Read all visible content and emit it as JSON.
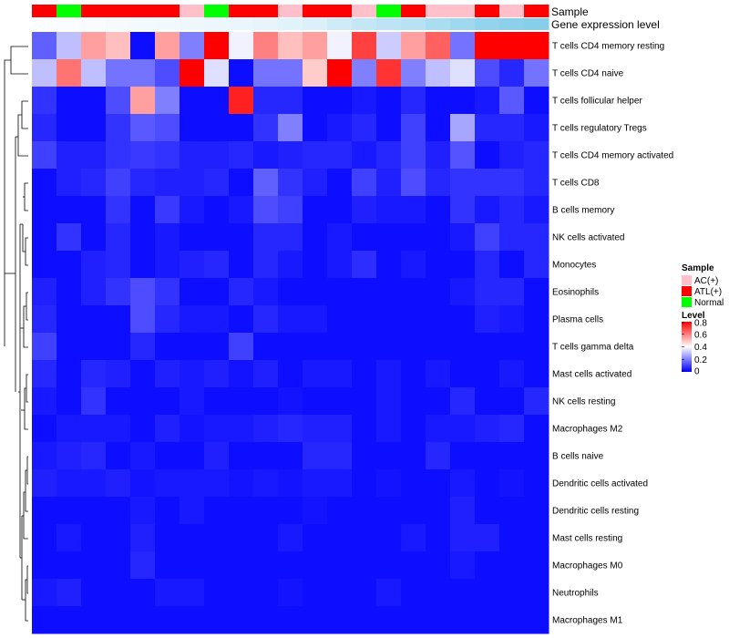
{
  "chart_data": {
    "type": "heatmap",
    "annotation_tracks": {
      "sample_label": "Sample",
      "gene_label": "Gene expression level"
    },
    "sample_groups": [
      "ATL(+)",
      "Normal",
      "ATL(+)",
      "ATL(+)",
      "ATL(+)",
      "ATL(+)",
      "AC(+)",
      "Normal",
      "ATL(+)",
      "ATL(+)",
      "AC(+)",
      "ATL(+)",
      "ATL(+)",
      "AC(+)",
      "Normal",
      "ATL(+)",
      "AC(+)",
      "AC(+)",
      "ATL(+)",
      "AC(+)",
      "ATL(+)"
    ],
    "gene_expression": [
      0.02,
      0.04,
      0.06,
      0.08,
      0.1,
      0.12,
      0.14,
      0.16,
      0.18,
      0.2,
      0.25,
      0.3,
      0.4,
      0.5,
      0.55,
      0.6,
      0.7,
      0.8,
      0.9,
      0.95,
      1.0
    ],
    "rows": [
      {
        "name": "T cells CD4 memory resting",
        "values": [
          0.15,
          0.3,
          0.55,
          0.5,
          0.02,
          0.55,
          0.2,
          0.8,
          0.38,
          0.6,
          0.5,
          0.55,
          0.38,
          0.7,
          0.32,
          0.55,
          0.65,
          0.18,
          0.8,
          0.8,
          0.8
        ]
      },
      {
        "name": "T cells CD4 naive",
        "values": [
          0.3,
          0.62,
          0.3,
          0.18,
          0.18,
          0.12,
          0.8,
          0.35,
          0.02,
          0.18,
          0.18,
          0.48,
          0.8,
          0.2,
          0.72,
          0.2,
          0.3,
          0.35,
          0.12,
          0.06,
          0.18
        ]
      },
      {
        "name": "T cells follicular helper",
        "values": [
          0.08,
          0.02,
          0.02,
          0.12,
          0.55,
          0.2,
          0.02,
          0.02,
          0.75,
          0.06,
          0.06,
          0.02,
          0.02,
          0.04,
          0.02,
          0.06,
          0.02,
          0.02,
          0.04,
          0.14,
          0.02
        ]
      },
      {
        "name": "T cells regulatory  Tregs",
        "values": [
          0.06,
          0.02,
          0.02,
          0.08,
          0.14,
          0.12,
          0.02,
          0.02,
          0.02,
          0.08,
          0.2,
          0.02,
          0.04,
          0.06,
          0.02,
          0.1,
          0.02,
          0.26,
          0.06,
          0.06,
          0.04
        ]
      },
      {
        "name": "T cells CD4 memory activated",
        "values": [
          0.1,
          0.05,
          0.05,
          0.08,
          0.09,
          0.08,
          0.05,
          0.05,
          0.06,
          0.04,
          0.05,
          0.06,
          0.06,
          0.04,
          0.06,
          0.1,
          0.05,
          0.13,
          0.02,
          0.05,
          0.06
        ]
      },
      {
        "name": "T cells CD8",
        "values": [
          0.02,
          0.05,
          0.06,
          0.1,
          0.06,
          0.05,
          0.05,
          0.06,
          0.02,
          0.15,
          0.08,
          0.05,
          0.02,
          0.1,
          0.05,
          0.12,
          0.06,
          0.08,
          0.08,
          0.08,
          0.06
        ]
      },
      {
        "name": "B cells memory",
        "values": [
          0.02,
          0.02,
          0.02,
          0.08,
          0.02,
          0.09,
          0.04,
          0.02,
          0.04,
          0.12,
          0.1,
          0.02,
          0.02,
          0.05,
          0.04,
          0.04,
          0.02,
          0.08,
          0.04,
          0.06,
          0.04
        ]
      },
      {
        "name": "NK cells activated",
        "values": [
          0.02,
          0.08,
          0.02,
          0.06,
          0.02,
          0.04,
          0.02,
          0.02,
          0.02,
          0.06,
          0.06,
          0.02,
          0.04,
          0.02,
          0.02,
          0.02,
          0.02,
          0.04,
          0.1,
          0.06,
          0.06
        ]
      },
      {
        "name": "Monocytes",
        "values": [
          0.02,
          0.02,
          0.05,
          0.06,
          0.02,
          0.04,
          0.05,
          0.06,
          0.02,
          0.06,
          0.04,
          0.02,
          0.04,
          0.07,
          0.02,
          0.04,
          0.02,
          0.02,
          0.06,
          0.02,
          0.06
        ]
      },
      {
        "name": "Eosinophils",
        "values": [
          0.05,
          0.02,
          0.05,
          0.08,
          0.12,
          0.08,
          0.02,
          0.02,
          0.06,
          0.04,
          0.02,
          0.02,
          0.02,
          0.02,
          0.02,
          0.02,
          0.02,
          0.04,
          0.06,
          0.06,
          0.02
        ]
      },
      {
        "name": "Plasma cells",
        "values": [
          0.06,
          0.02,
          0.02,
          0.02,
          0.12,
          0.06,
          0.04,
          0.04,
          0.02,
          0.06,
          0.04,
          0.04,
          0.02,
          0.02,
          0.02,
          0.02,
          0.02,
          0.02,
          0.05,
          0.04,
          0.02
        ]
      },
      {
        "name": "T cells gamma delta",
        "values": [
          0.1,
          0.02,
          0.02,
          0.02,
          0.06,
          0.02,
          0.02,
          0.02,
          0.1,
          0.02,
          0.02,
          0.02,
          0.02,
          0.02,
          0.02,
          0.02,
          0.02,
          0.02,
          0.02,
          0.02,
          0.02
        ]
      },
      {
        "name": "Mast cells activated",
        "values": [
          0.06,
          0.02,
          0.06,
          0.05,
          0.02,
          0.05,
          0.04,
          0.05,
          0.03,
          0.05,
          0.02,
          0.04,
          0.04,
          0.02,
          0.04,
          0.02,
          0.04,
          0.02,
          0.02,
          0.04,
          0.02
        ]
      },
      {
        "name": "NK cells resting",
        "values": [
          0.04,
          0.02,
          0.08,
          0.02,
          0.02,
          0.02,
          0.04,
          0.02,
          0.02,
          0.02,
          0.03,
          0.02,
          0.02,
          0.02,
          0.04,
          0.02,
          0.02,
          0.06,
          0.02,
          0.02,
          0.06
        ]
      },
      {
        "name": "Macrophages M2",
        "values": [
          0.02,
          0.04,
          0.04,
          0.04,
          0.02,
          0.05,
          0.03,
          0.04,
          0.04,
          0.05,
          0.06,
          0.05,
          0.05,
          0.02,
          0.04,
          0.02,
          0.04,
          0.04,
          0.05,
          0.06,
          0.02
        ]
      },
      {
        "name": "B cells naive",
        "values": [
          0.04,
          0.05,
          0.06,
          0.02,
          0.04,
          0.02,
          0.02,
          0.05,
          0.02,
          0.02,
          0.02,
          0.06,
          0.06,
          0.02,
          0.02,
          0.02,
          0.06,
          0.02,
          0.02,
          0.02,
          0.02
        ]
      },
      {
        "name": "Dendritic cells activated",
        "values": [
          0.05,
          0.04,
          0.04,
          0.05,
          0.03,
          0.04,
          0.04,
          0.04,
          0.03,
          0.04,
          0.03,
          0.04,
          0.04,
          0.02,
          0.03,
          0.02,
          0.02,
          0.04,
          0.02,
          0.03,
          0.02
        ]
      },
      {
        "name": "Dendritic cells resting",
        "values": [
          0.02,
          0.02,
          0.02,
          0.02,
          0.04,
          0.02,
          0.04,
          0.02,
          0.02,
          0.02,
          0.02,
          0.03,
          0.02,
          0.02,
          0.02,
          0.02,
          0.02,
          0.05,
          0.02,
          0.02,
          0.02
        ]
      },
      {
        "name": "Mast cells resting",
        "values": [
          0.02,
          0.04,
          0.02,
          0.02,
          0.05,
          0.02,
          0.02,
          0.02,
          0.02,
          0.02,
          0.04,
          0.02,
          0.02,
          0.02,
          0.02,
          0.04,
          0.02,
          0.05,
          0.05,
          0.02,
          0.02
        ]
      },
      {
        "name": "Macrophages M0",
        "values": [
          0.02,
          0.02,
          0.02,
          0.02,
          0.06,
          0.02,
          0.02,
          0.02,
          0.02,
          0.02,
          0.02,
          0.02,
          0.02,
          0.02,
          0.02,
          0.02,
          0.02,
          0.04,
          0.02,
          0.02,
          0.02
        ]
      },
      {
        "name": "Neutrophils",
        "values": [
          0.04,
          0.05,
          0.02,
          0.02,
          0.02,
          0.04,
          0.04,
          0.02,
          0.02,
          0.02,
          0.03,
          0.02,
          0.02,
          0.02,
          0.04,
          0.02,
          0.02,
          0.02,
          0.02,
          0.02,
          0.02
        ]
      },
      {
        "name": "Macrophages M1",
        "values": [
          0.02,
          0.02,
          0.02,
          0.02,
          0.02,
          0.02,
          0.02,
          0.02,
          0.02,
          0.02,
          0.02,
          0.02,
          0.02,
          0.02,
          0.02,
          0.02,
          0.02,
          0.02,
          0.02,
          0.02,
          0.02
        ]
      }
    ],
    "legend": {
      "sample_title": "Sample",
      "sample_items": [
        {
          "label": "AC(+)",
          "color": "#FFC0CB"
        },
        {
          "label": "ATL(+)",
          "color": "#FF0000"
        },
        {
          "label": "Normal",
          "color": "#00FF00"
        }
      ],
      "level_title": "Level",
      "level_ticks": [
        "0.8",
        "0.6",
        "0.4",
        "0.2",
        "0"
      ],
      "level_tick_values": [
        0.8,
        0.6,
        0.4,
        0.2,
        0
      ]
    },
    "color_scale": {
      "low": "#0000FF",
      "mid": "#FFFFFF",
      "high": "#FF0000",
      "range": [
        0,
        0.8
      ]
    },
    "gene_scale": {
      "low": "#FFFFFF",
      "high": "#87CEEB"
    }
  }
}
